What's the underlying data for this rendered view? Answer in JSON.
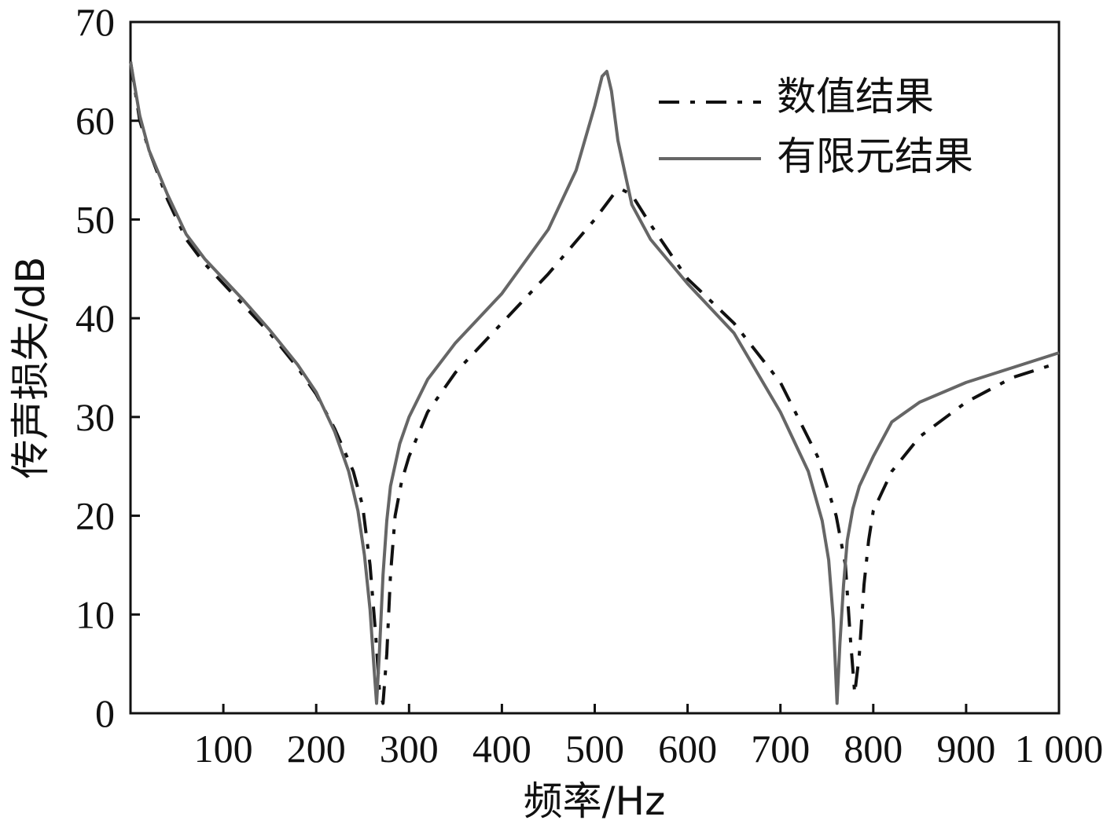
{
  "chart_data": {
    "type": "line",
    "title": "",
    "xlabel": "频率/Hz",
    "ylabel": "传声损失/dB",
    "xlim": [
      0,
      1000
    ],
    "ylim": [
      0,
      70
    ],
    "xticks": [
      100,
      200,
      300,
      400,
      500,
      600,
      700,
      800,
      900,
      1000
    ],
    "xtick_labels": [
      "100",
      "200",
      "300",
      "400",
      "500",
      "600",
      "700",
      "800",
      "900",
      "1 000"
    ],
    "yticks": [
      0,
      10,
      20,
      30,
      40,
      50,
      60,
      70
    ],
    "ytick_labels": [
      "0",
      "10",
      "20",
      "30",
      "40",
      "50",
      "60",
      "70"
    ],
    "grid": false,
    "legend_position": "top-right",
    "series": [
      {
        "name": "数值结果",
        "style": "dash-dot",
        "color": "#111111",
        "x": [
          0,
          10,
          20,
          40,
          60,
          80,
          100,
          120,
          150,
          180,
          200,
          220,
          240,
          250,
          258,
          264,
          268,
          272,
          276,
          280,
          285,
          292,
          300,
          320,
          350,
          400,
          450,
          500,
          520,
          530,
          540,
          560,
          600,
          650,
          700,
          740,
          760,
          770,
          775,
          780,
          785,
          790,
          795,
          800,
          820,
          850,
          900,
          950,
          1000
        ],
        "y": [
          66,
          60,
          57,
          52,
          48,
          45.5,
          43.5,
          41.5,
          38.5,
          35,
          32.3,
          28.8,
          24.5,
          21,
          15,
          8,
          2.5,
          1,
          6,
          14,
          20,
          23.5,
          26,
          30.5,
          34.5,
          39.5,
          44.5,
          50,
          52.5,
          53,
          52.5,
          49.5,
          44,
          39.5,
          33.5,
          26,
          20,
          15,
          8,
          2,
          6,
          13,
          17.5,
          20.5,
          24.5,
          28,
          31.5,
          34,
          35.5
        ]
      },
      {
        "name": "有限元结果",
        "style": "solid",
        "color": "#666666",
        "x": [
          0,
          10,
          20,
          40,
          60,
          80,
          100,
          120,
          150,
          180,
          200,
          220,
          235,
          245,
          252,
          258,
          262,
          265,
          268,
          272,
          276,
          280,
          290,
          300,
          320,
          350,
          400,
          450,
          480,
          500,
          508,
          513,
          518,
          525,
          540,
          560,
          600,
          650,
          700,
          730,
          745,
          752,
          757,
          761,
          764,
          768,
          772,
          778,
          785,
          800,
          820,
          850,
          900,
          950,
          1000
        ],
        "y": [
          66,
          60.5,
          57,
          52.5,
          48.5,
          46,
          44,
          42,
          38.8,
          35.3,
          32.5,
          28.5,
          24.5,
          20.5,
          16,
          10.5,
          5,
          1,
          6,
          14,
          19.5,
          23,
          27.3,
          30,
          33.8,
          37.5,
          42.5,
          49,
          55,
          61.5,
          64.5,
          65,
          63,
          58,
          51.5,
          48,
          43.5,
          38.5,
          30.5,
          24.5,
          19.5,
          15.5,
          9.5,
          1,
          7,
          13,
          17.5,
          20.7,
          23,
          26,
          29.5,
          31.5,
          33.5,
          35,
          36.5
        ]
      }
    ]
  }
}
